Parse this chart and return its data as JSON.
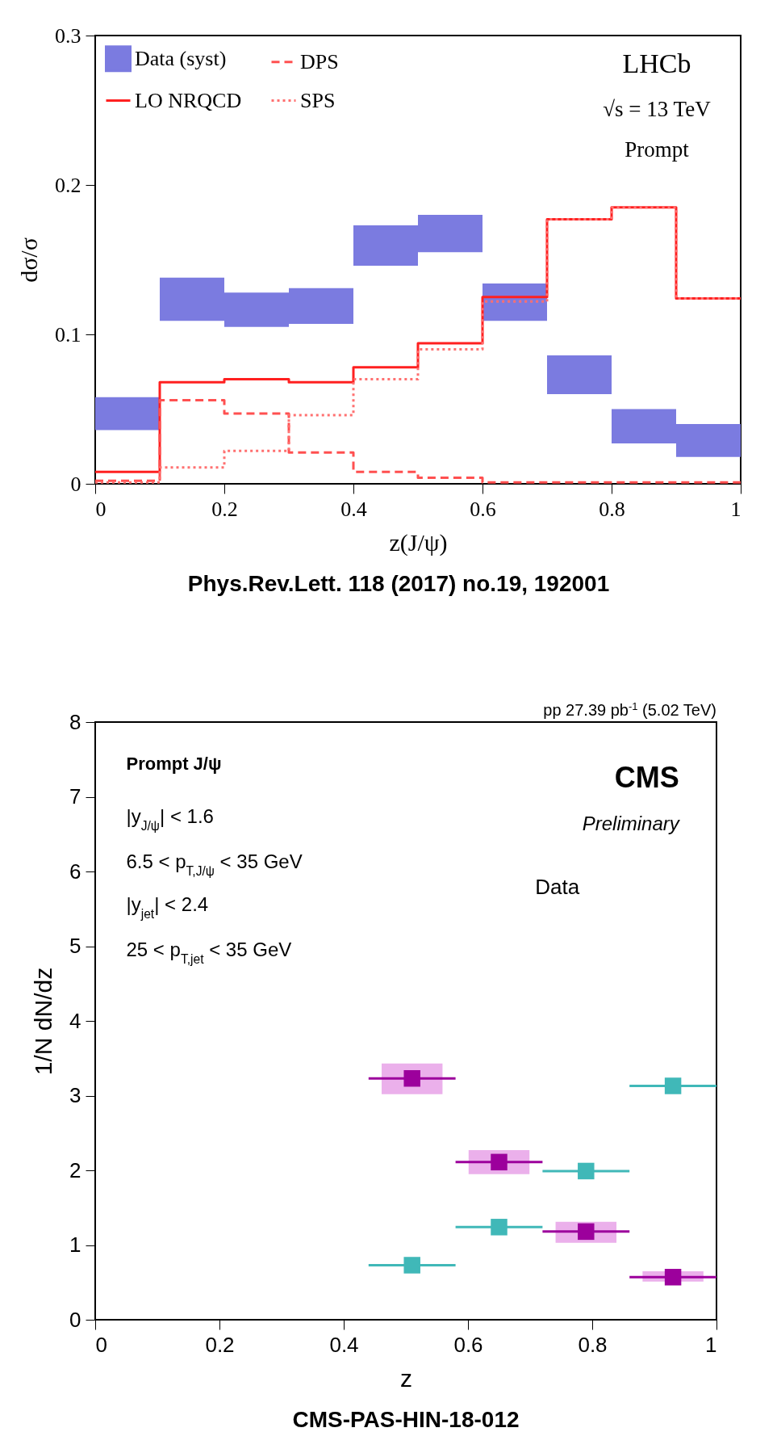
{
  "chart_data": [
    {
      "type": "bar",
      "xlabel": "z(J/ψ)",
      "ylabel": "dσ/σ",
      "xlim": [
        0,
        1
      ],
      "ylim": [
        0,
        0.3
      ],
      "xticks": [
        0,
        0.2,
        0.4,
        0.6,
        0.8,
        1
      ],
      "yticks": [
        0,
        0.1,
        0.2,
        0.3
      ],
      "grid": false,
      "legend": "top left",
      "annotations": [
        "LHCb",
        "√s = 13 TeV",
        "Prompt",
        "Phys.Rev.Lett. 118 (2017) no.19, 192001"
      ],
      "series": [
        {
          "name": "Data (syst)",
          "color": "#7b7be0",
          "x": [
            0.05,
            0.15,
            0.25,
            0.35,
            0.45,
            0.55,
            0.65,
            0.75,
            0.85,
            0.95
          ],
          "base": [
            0.036,
            0.109,
            0.105,
            0.107,
            0.146,
            0.155,
            0.109,
            0.06,
            0.027,
            0.018
          ],
          "values": [
            0.022,
            0.029,
            0.023,
            0.024,
            0.027,
            0.025,
            0.025,
            0.026,
            0.023,
            0.022
          ]
        },
        {
          "name": "LO NRQCD",
          "type": "step",
          "color": "#ff2020",
          "line_style": "solid",
          "x": [
            0,
            0.1,
            0.2,
            0.3,
            0.4,
            0.5,
            0.6,
            0.7,
            0.8,
            0.9,
            1
          ],
          "values": [
            0.008,
            0.068,
            0.07,
            0.068,
            0.078,
            0.094,
            0.125,
            0.177,
            0.185,
            0.124,
            0.124
          ]
        },
        {
          "name": "DPS",
          "type": "step",
          "color": "#ff5050",
          "line_style": "dashed",
          "x": [
            0,
            0.1,
            0.2,
            0.3,
            0.4,
            0.5,
            0.6,
            0.7,
            0.8,
            0.9,
            1
          ],
          "values": [
            0.002,
            0.056,
            0.047,
            0.021,
            0.008,
            0.004,
            0.001,
            0.001,
            0.001,
            0.001,
            0.001
          ]
        },
        {
          "name": "SPS",
          "type": "step",
          "color": "#ff7070",
          "line_style": "dotted",
          "x": [
            0,
            0.1,
            0.2,
            0.3,
            0.4,
            0.5,
            0.6,
            0.7,
            0.8,
            0.9,
            1
          ],
          "values": [
            0.001,
            0.011,
            0.022,
            0.046,
            0.07,
            0.09,
            0.122,
            0.177,
            0.185,
            0.124,
            0.124
          ]
        }
      ]
    },
    {
      "type": "scatter",
      "xlabel": "z",
      "ylabel": "1/N dN/dz",
      "xlim": [
        0,
        1
      ],
      "ylim": [
        0,
        8
      ],
      "xticks": [
        0,
        0.2,
        0.4,
        0.6,
        0.8,
        1
      ],
      "yticks": [
        0,
        1,
        2,
        3,
        4,
        5,
        6,
        7,
        8
      ],
      "grid": false,
      "legend": "top right",
      "marker": "square",
      "annotations": [
        "pp 27.39 pb$^{-1}$ (5.02 TeV)",
        "Prompt J/ψ",
        "|y$_{J/ψ}$| < 1.6",
        "6.5 < p$_{T,J/ψ}$ < 35 GeV",
        "|y$_{jet}$| < 2.4",
        "25 < p$_{T,jet}$ < 35 GeV",
        "CMS",
        "Preliminary",
        "CMS-PAS-HIN-18-012"
      ],
      "series": [
        {
          "type": "bar",
          "color": "#ebb0eb",
          "x": [
            0.51,
            0.65,
            0.79,
            0.93
          ],
          "base": [
            3.02,
            1.95,
            1.03,
            0.51
          ],
          "values": [
            0.41,
            0.32,
            0.28,
            0.14
          ]
        },
        {
          "name": "Data",
          "color": "#9c009c",
          "x": [
            0.51,
            0.65,
            0.79,
            0.93
          ],
          "values": [
            3.23,
            2.11,
            1.18,
            0.57
          ],
          "xerrors": [
            [
              0.44,
              0.58
            ],
            [
              0.58,
              0.72
            ],
            [
              0.72,
              0.86
            ],
            [
              0.86,
              1.0
            ]
          ]
        },
        {
          "color": "#40b8b8",
          "x": [
            0.51,
            0.65,
            0.79,
            0.93
          ],
          "values": [
            0.73,
            1.24,
            1.99,
            3.13
          ],
          "xerrors": [
            [
              0.44,
              0.58
            ],
            [
              0.58,
              0.72
            ],
            [
              0.72,
              0.86
            ],
            [
              0.86,
              1.0
            ]
          ]
        }
      ]
    }
  ]
}
